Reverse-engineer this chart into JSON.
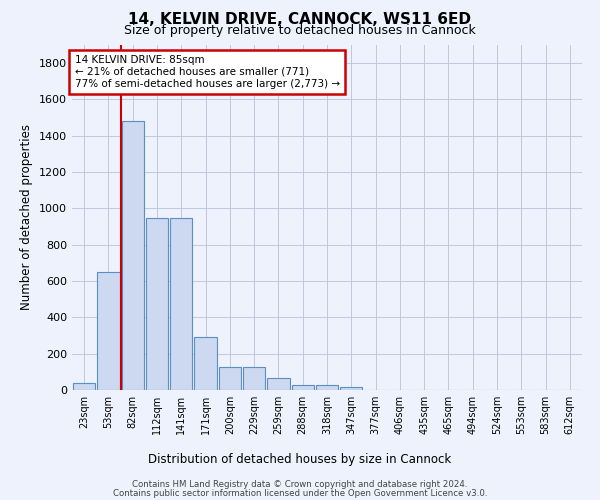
{
  "title": "14, KELVIN DRIVE, CANNOCK, WS11 6ED",
  "subtitle": "Size of property relative to detached houses in Cannock",
  "xlabel": "Distribution of detached houses by size in Cannock",
  "ylabel": "Number of detached properties",
  "bar_color": "#ccd9f0",
  "bar_edge_color": "#5b8ec4",
  "annotation_box_color": "#cc0000",
  "property_line_color": "#cc0000",
  "annotation_text": "14 KELVIN DRIVE: 85sqm\n← 21% of detached houses are smaller (771)\n77% of semi-detached houses are larger (2,773) →",
  "categories": [
    "23sqm",
    "53sqm",
    "82sqm",
    "112sqm",
    "141sqm",
    "171sqm",
    "200sqm",
    "229sqm",
    "259sqm",
    "288sqm",
    "318sqm",
    "347sqm",
    "377sqm",
    "406sqm",
    "435sqm",
    "465sqm",
    "494sqm",
    "524sqm",
    "553sqm",
    "583sqm",
    "612sqm"
  ],
  "bar_values": [
    40,
    650,
    1480,
    950,
    950,
    290,
    125,
    125,
    65,
    25,
    25,
    15,
    0,
    0,
    0,
    0,
    0,
    0,
    0,
    0,
    0
  ],
  "ylim": [
    0,
    1900
  ],
  "yticks": [
    0,
    200,
    400,
    600,
    800,
    1000,
    1200,
    1400,
    1600,
    1800
  ],
  "property_bar_index": 2,
  "footer_line1": "Contains HM Land Registry data © Crown copyright and database right 2024.",
  "footer_line2": "Contains public sector information licensed under the Open Government Licence v3.0.",
  "background_color": "#eef2fc",
  "plot_bg_color": "#eef2fc",
  "grid_color": "#c0c8dc"
}
